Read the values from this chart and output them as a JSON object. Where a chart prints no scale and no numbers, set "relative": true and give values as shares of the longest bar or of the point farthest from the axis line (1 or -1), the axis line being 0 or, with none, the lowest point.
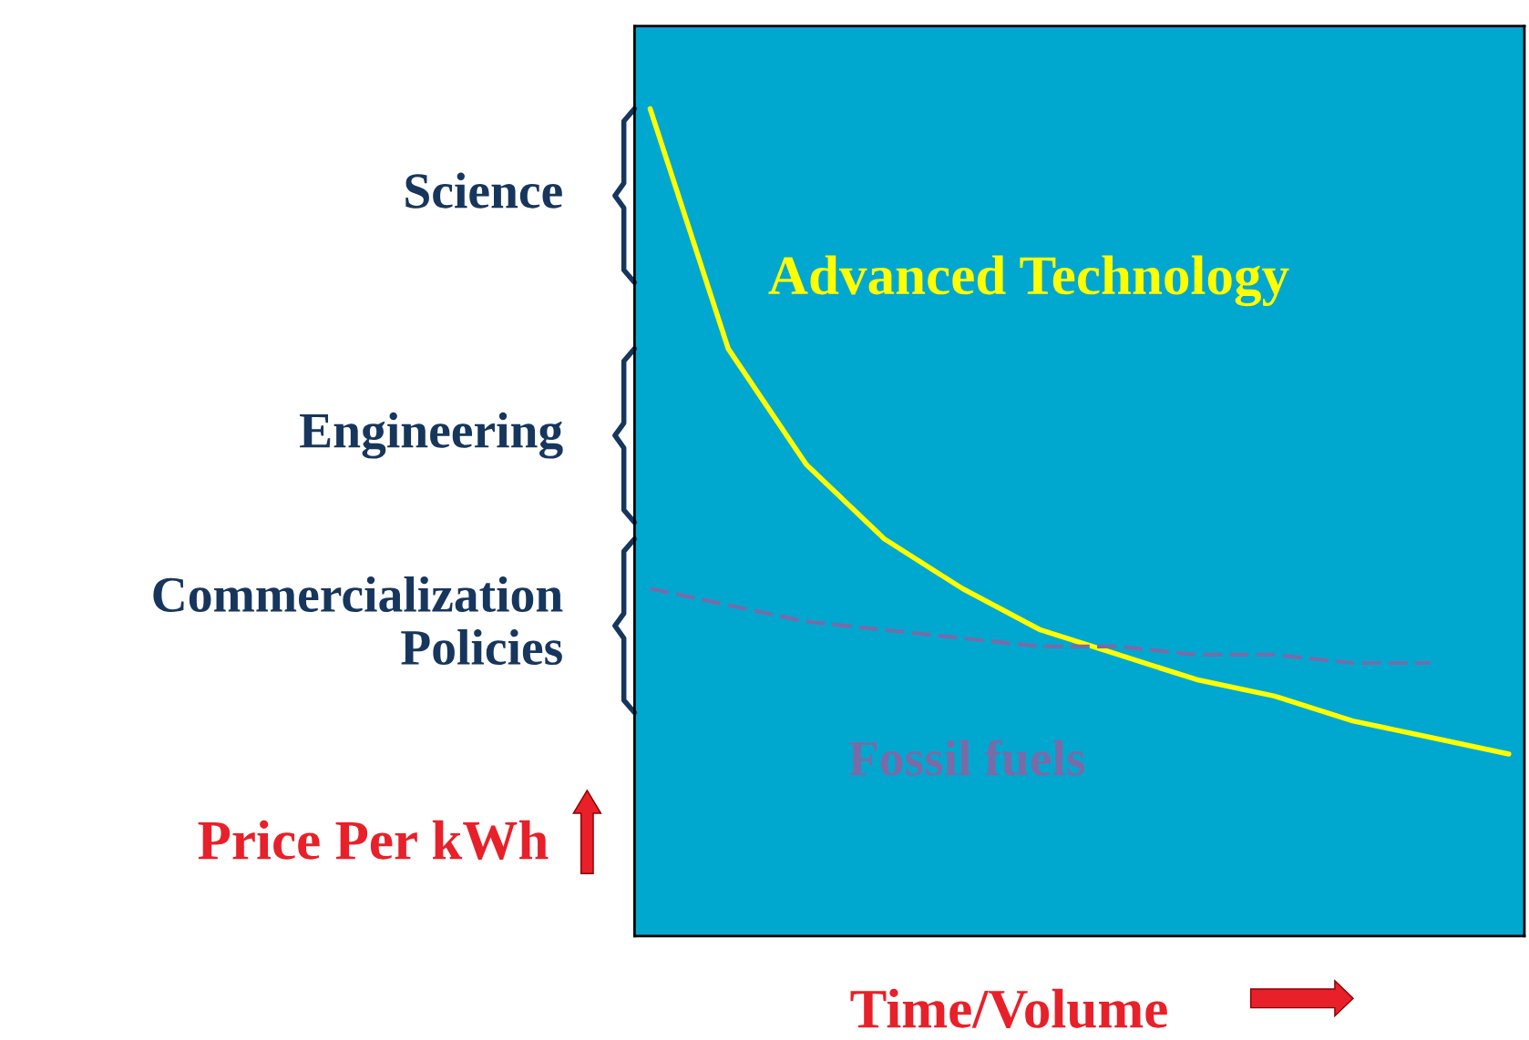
{
  "chart_data": {
    "type": "line",
    "relative": true,
    "xlabel": "Time/Volume",
    "ylabel": "Price Per kWh",
    "categories": [
      null,
      null,
      null,
      null,
      null,
      null,
      null,
      null,
      null,
      null,
      null,
      null
    ],
    "series": [
      {
        "name": "Advanced Technology",
        "color": "#ffff00",
        "line_style": "solid",
        "values": [
          1.0,
          0.71,
          0.57,
          0.48,
          0.42,
          0.37,
          0.34,
          0.31,
          0.29,
          0.26,
          0.24,
          0.22
        ]
      },
      {
        "name": "Fossil fuels",
        "color": "#7a6aa8",
        "line_style": "dashed",
        "values": [
          0.42,
          0.4,
          0.38,
          0.37,
          0.36,
          0.35,
          0.35,
          0.34,
          0.34,
          0.33,
          0.33,
          null
        ]
      }
    ],
    "annotations": [
      "Science",
      "Engineering",
      "Commercialization\nPolicies"
    ],
    "grid": false,
    "marker": "none"
  }
}
